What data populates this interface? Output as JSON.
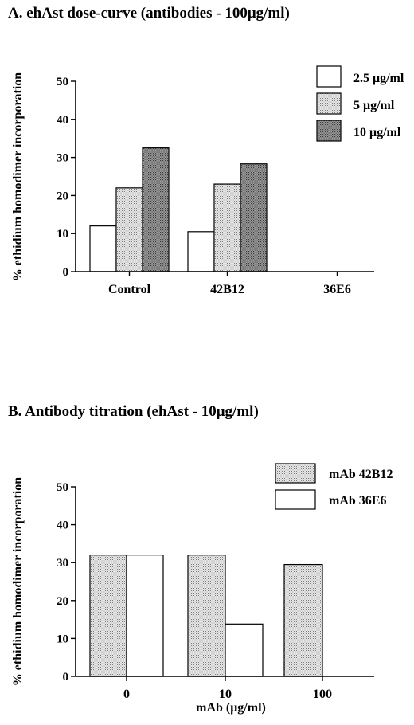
{
  "colors": {
    "fill_white": "#ffffff",
    "fill_light": "#dcdcdc",
    "fill_dark": "#8a8a8a",
    "stroke": "#000000"
  },
  "chart_data": [
    {
      "type": "bar",
      "title": "A.  ehAst dose-curve (antibodies - 100μg/ml)",
      "xlabel": "",
      "ylabel": "% ethidium homodimer incorporation",
      "ylim": [
        0,
        50
      ],
      "yticks": [
        0,
        10,
        20,
        30,
        40,
        50
      ],
      "categories": [
        "Control",
        "42B12",
        "36E6"
      ],
      "series": [
        {
          "name": "2.5 μg/ml",
          "fill": "white",
          "values": [
            12,
            10.5,
            0
          ]
        },
        {
          "name": "5 μg/ml",
          "fill": "light",
          "values": [
            22,
            23,
            0
          ]
        },
        {
          "name": "10 μg/ml",
          "fill": "dark",
          "values": [
            32.5,
            28.3,
            0
          ]
        }
      ],
      "legend": "top-right",
      "grid": false
    },
    {
      "type": "bar",
      "title": "B.  Antibody titration (ehAst - 10μg/ml)",
      "xlabel": "mAb (μg/ml)",
      "ylabel": "% ethidium homodimer incorporation",
      "ylim": [
        0,
        50
      ],
      "yticks": [
        0,
        10,
        20,
        30,
        40,
        50
      ],
      "categories": [
        "0",
        "10",
        "100"
      ],
      "series": [
        {
          "name": "mAb 42B12",
          "fill": "light",
          "values": [
            32,
            32,
            29.5
          ]
        },
        {
          "name": "mAb 36E6",
          "fill": "white",
          "values": [
            32,
            13.8,
            0
          ]
        }
      ],
      "legend": "top-right",
      "grid": false
    }
  ]
}
